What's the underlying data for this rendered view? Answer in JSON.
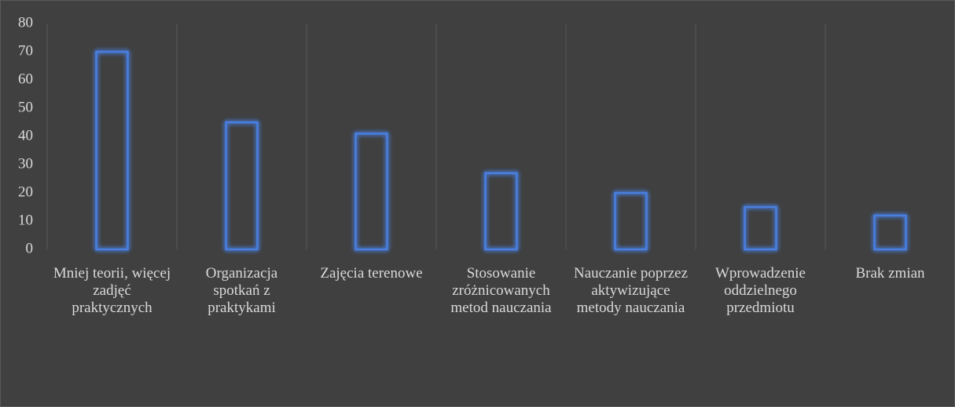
{
  "chart_data": {
    "type": "bar",
    "categories": [
      "Mniej teorii, więcej zadjęć praktycznych",
      "Organizacja spotkań z praktykami",
      "Zajęcia terenowe",
      "Stosowanie zróżnicowanych metod nauczania",
      "Nauczanie poprzez aktywizujące metody nauczania",
      "Wprowadzenie oddzielnego przedmiotu",
      "Brak zmian"
    ],
    "values": [
      70,
      45,
      41,
      27,
      20,
      15,
      12
    ],
    "color": "#4a7fe0",
    "ylim": [
      0,
      80
    ],
    "yticks": [
      0,
      10,
      20,
      30,
      40,
      50,
      60,
      70,
      80
    ],
    "grid": true
  }
}
